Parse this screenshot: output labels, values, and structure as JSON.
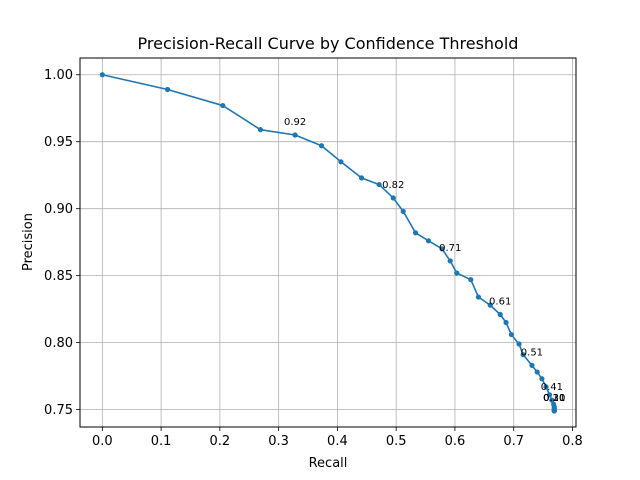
{
  "chart_data": {
    "type": "line",
    "title": "Precision-Recall Curve by Confidence Threshold",
    "xlabel": "Recall",
    "ylabel": "Precision",
    "xlim": [
      -0.038,
      0.806
    ],
    "ylim": [
      0.737,
      1.0125
    ],
    "xticks": [
      "0.0",
      "0.1",
      "0.2",
      "0.3",
      "0.4",
      "0.5",
      "0.6",
      "0.7",
      "0.8"
    ],
    "xtick_values": [
      0.0,
      0.1,
      0.2,
      0.3,
      0.4,
      0.5,
      0.6,
      0.7,
      0.8
    ],
    "yticks": [
      "0.75",
      "0.80",
      "0.85",
      "0.90",
      "0.95",
      "1.00"
    ],
    "ytick_values": [
      0.75,
      0.8,
      0.85,
      0.9,
      0.95,
      1.0
    ],
    "grid": true,
    "line_color": "#1f77b4",
    "series": [
      {
        "x": [
          0.0,
          0.111,
          0.205,
          0.269,
          0.328,
          0.373,
          0.406,
          0.441,
          0.471,
          0.495,
          0.512,
          0.533,
          0.555,
          0.578,
          0.592,
          0.603,
          0.627,
          0.64,
          0.66,
          0.677,
          0.687,
          0.696,
          0.709,
          0.716,
          0.731,
          0.74,
          0.748,
          0.755,
          0.761,
          0.765,
          0.768,
          0.769,
          0.769,
          0.769,
          0.769,
          0.769,
          0.769
        ],
        "y": [
          1.0,
          0.989,
          0.977,
          0.959,
          0.955,
          0.947,
          0.935,
          0.923,
          0.918,
          0.908,
          0.898,
          0.882,
          0.876,
          0.87,
          0.861,
          0.852,
          0.847,
          0.834,
          0.828,
          0.821,
          0.815,
          0.806,
          0.799,
          0.791,
          0.783,
          0.778,
          0.773,
          0.767,
          0.761,
          0.757,
          0.754,
          0.752,
          0.751,
          0.75,
          0.749,
          0.749,
          0.749
        ]
      }
    ],
    "annotations": [
      {
        "text": "0.92",
        "x": 0.328,
        "y": 0.955
      },
      {
        "text": "0.82",
        "x": 0.495,
        "y": 0.908
      },
      {
        "text": "0.71",
        "x": 0.592,
        "y": 0.861
      },
      {
        "text": "0.61",
        "x": 0.677,
        "y": 0.821
      },
      {
        "text": "0.51",
        "x": 0.731,
        "y": 0.783
      },
      {
        "text": "0.41",
        "x": 0.765,
        "y": 0.757
      },
      {
        "text": "0.31",
        "x": 0.769,
        "y": 0.749
      },
      {
        "text": "0.20",
        "x": 0.769,
        "y": 0.749
      },
      {
        "text": "0.10",
        "x": 0.769,
        "y": 0.749
      }
    ]
  }
}
